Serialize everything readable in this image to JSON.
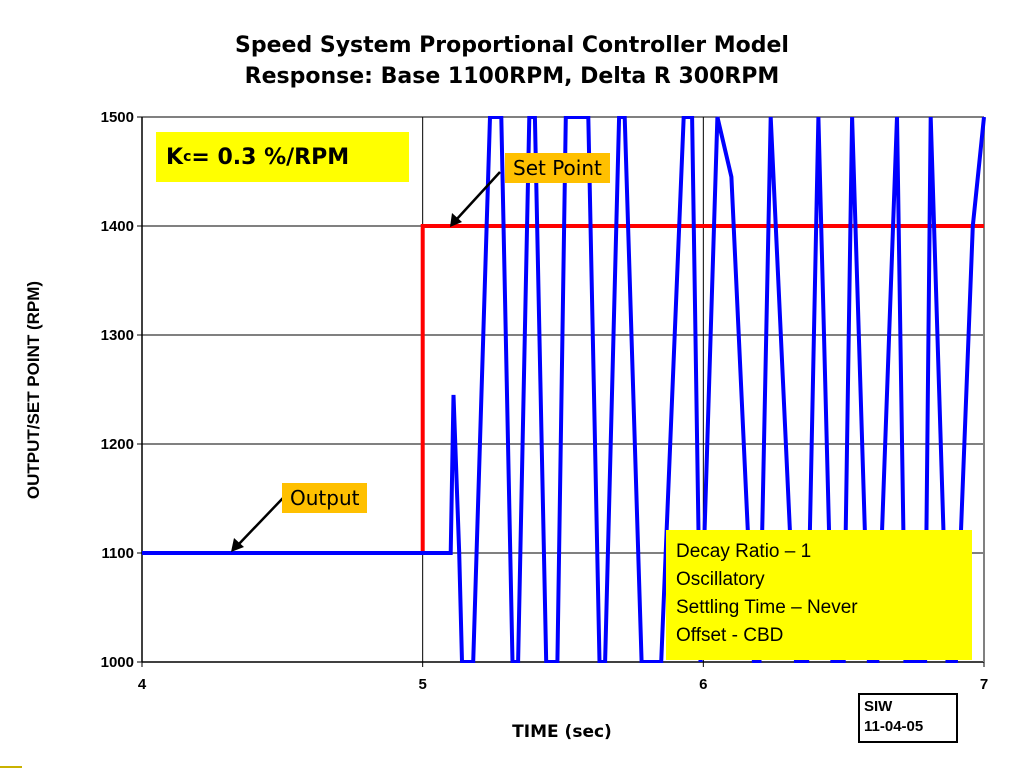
{
  "chart_data": {
    "type": "line",
    "title": [
      "Speed System Proportional Controller Model",
      "Response: Base 1100RPM, Delta R 300RPM"
    ],
    "xlabel": "TIME (sec)",
    "ylabel": "OUTPUT/SET POINT (RPM)",
    "xlim": [
      4,
      7
    ],
    "ylim": [
      1000,
      1500
    ],
    "xticks": [
      "4",
      "5",
      "6",
      "7"
    ],
    "yticks": [
      "1000",
      "1100",
      "1200",
      "1300",
      "1400",
      "1500"
    ],
    "grid": "horizontal",
    "series": [
      {
        "name": "Set Point",
        "color": "#ff0000",
        "x": [
          4.0,
          5.0,
          5.0,
          7.0
        ],
        "y": [
          1100,
          1100,
          1400,
          1400
        ]
      },
      {
        "name": "Output",
        "color": "#0000ff",
        "x": [
          4.0,
          5.1,
          5.11,
          5.13,
          5.14,
          5.17,
          5.18,
          5.24,
          5.28,
          5.32,
          5.34,
          5.38,
          5.4,
          5.44,
          5.48,
          5.51,
          5.59,
          5.63,
          5.65,
          5.7,
          5.72,
          5.78,
          5.85,
          5.93,
          5.96,
          5.99,
          6.05,
          6.1,
          6.18,
          6.2,
          6.24,
          6.33,
          6.37,
          6.41,
          6.46,
          6.5,
          6.53,
          6.59,
          6.62,
          6.69,
          6.72,
          6.79,
          6.81,
          6.87,
          6.9,
          6.96,
          7.0
        ],
        "y": [
          1100,
          1100,
          1245,
          1100,
          1000,
          1000,
          1000,
          1500,
          1500,
          1000,
          1000,
          1500,
          1500,
          1000,
          1000,
          1500,
          1500,
          1000,
          1000,
          1500,
          1500,
          1000,
          1000,
          1500,
          1500,
          1000,
          1500,
          1445,
          1000,
          1000,
          1500,
          1000,
          1000,
          1500,
          1000,
          1000,
          1500,
          1000,
          1000,
          1500,
          1000,
          1000,
          1500,
          1000,
          1000,
          1400,
          1500
        ]
      }
    ],
    "annotations": {
      "kc_label": "K",
      "kc_sub": "c",
      "kc_value": " = 0.3 %/RPM",
      "set_point_callout": "Set Point",
      "output_callout": "Output",
      "notes": [
        "Decay Ratio – 1",
        "Oscillatory",
        "Settling Time – Never",
        "Offset - CBD"
      ],
      "stamp": [
        "SIW",
        "11-04-05"
      ]
    }
  }
}
